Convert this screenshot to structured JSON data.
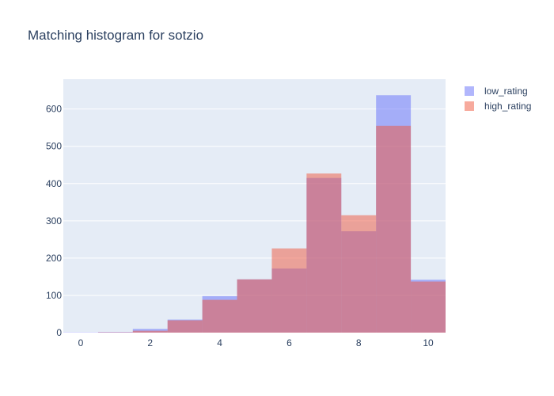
{
  "chart_data": {
    "type": "bar",
    "title": "Matching histogram for sotzio",
    "xlabel": "",
    "ylabel": "",
    "barmode": "overlay",
    "x": [
      0,
      1,
      2,
      3,
      4,
      5,
      6,
      7,
      8,
      9,
      10
    ],
    "xlim": [
      -0.5,
      10.5
    ],
    "ylim": [
      0,
      680
    ],
    "xticks": [
      0,
      2,
      4,
      6,
      8,
      10
    ],
    "yticks": [
      0,
      100,
      200,
      300,
      400,
      500,
      600
    ],
    "grid": true,
    "legend_position": "top-right",
    "series": [
      {
        "name": "low_rating",
        "color": "#636efa",
        "values": [
          1,
          2,
          10,
          35,
          98,
          143,
          172,
          415,
          272,
          637,
          142
        ]
      },
      {
        "name": "high_rating",
        "color": "#ef553b",
        "values": [
          0,
          1,
          5,
          33,
          88,
          143,
          226,
          427,
          315,
          555,
          137
        ]
      }
    ]
  }
}
